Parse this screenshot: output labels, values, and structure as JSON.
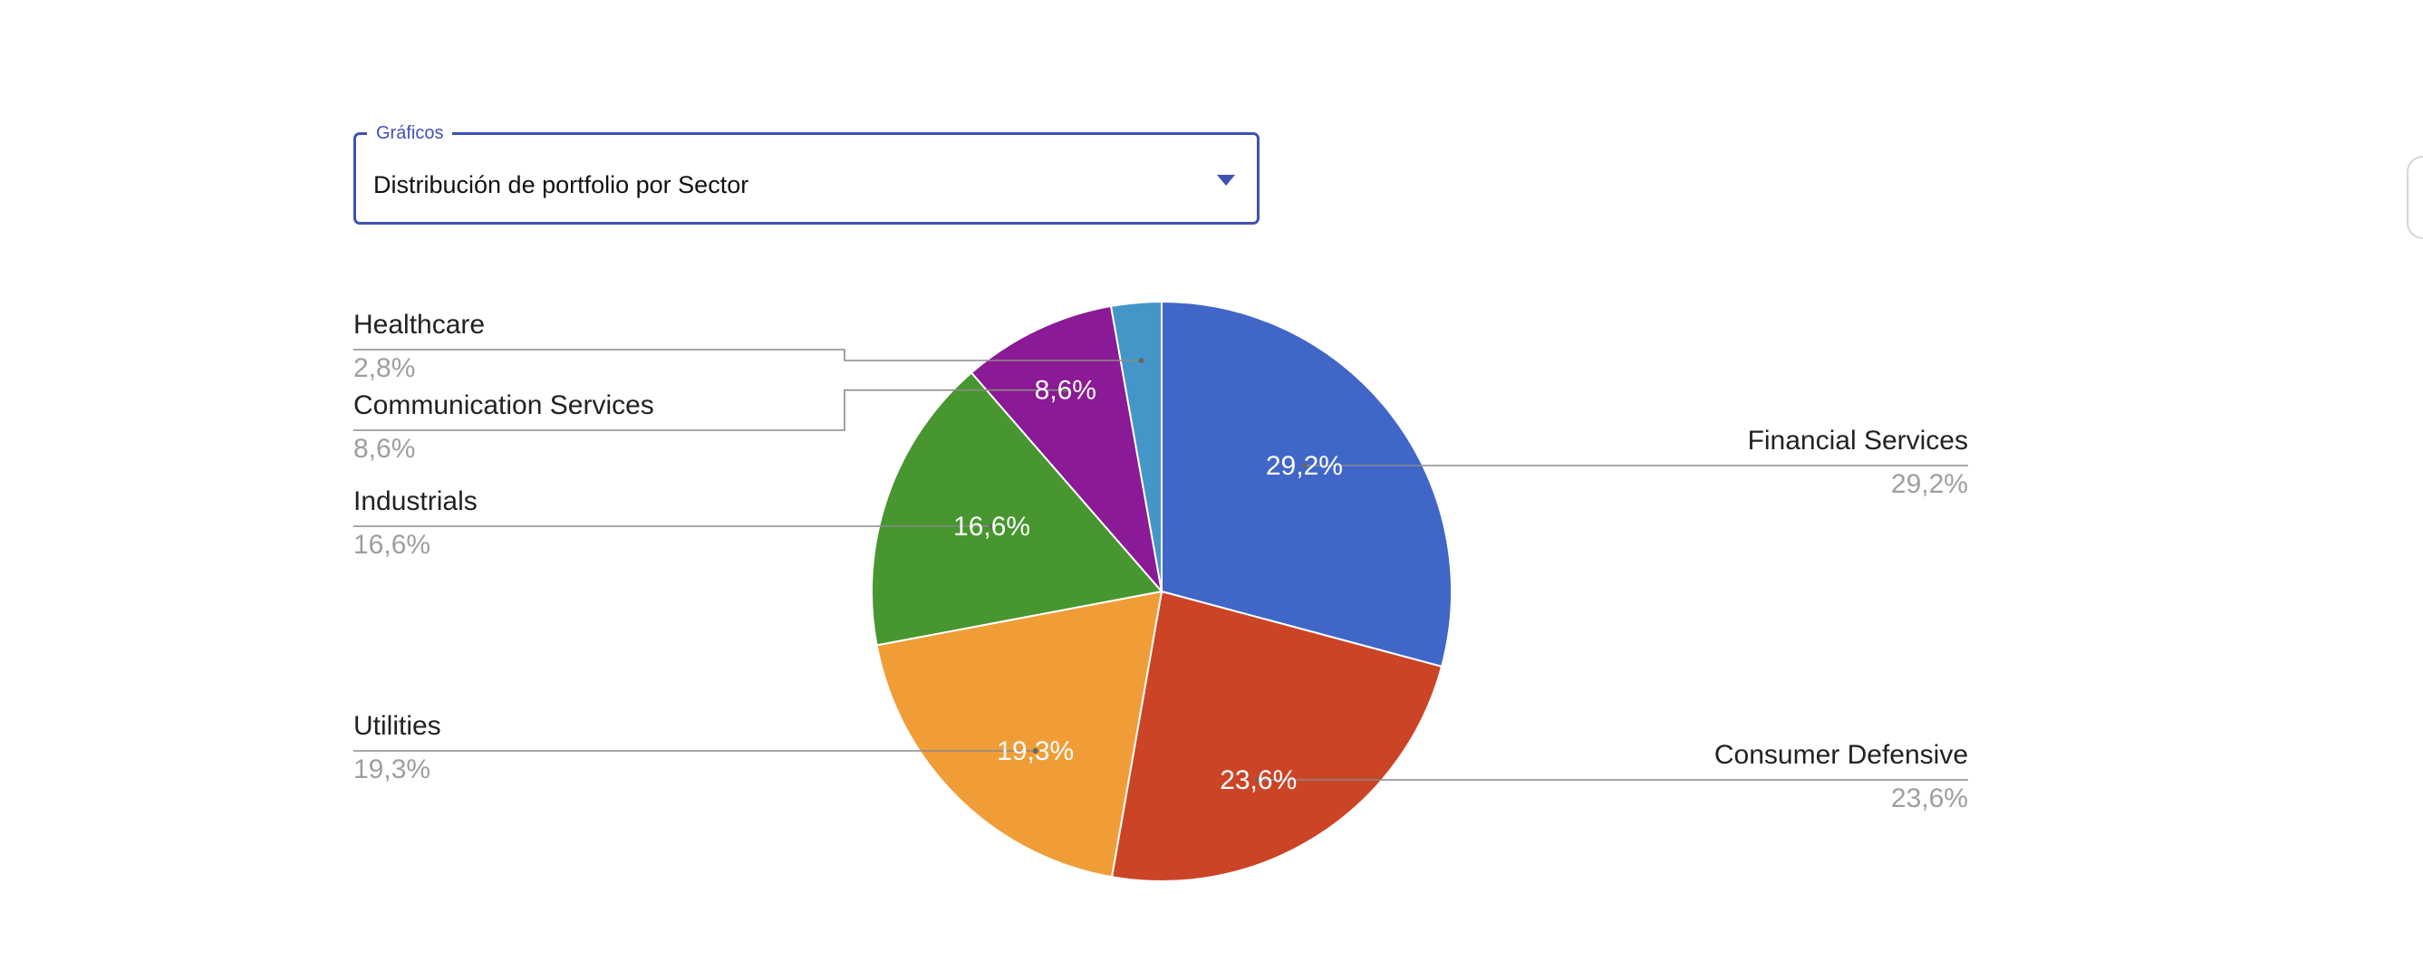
{
  "selector": {
    "legend": "Gráficos",
    "value": "Distribución de portfolio por Sector"
  },
  "chart_data": {
    "type": "pie",
    "start_angle": 0,
    "direction": "clockwise",
    "slices": [
      {
        "name": "Financial Services",
        "value": 29.2,
        "label": "29,2%",
        "color": "#4066c8",
        "slice_label": "29,2%"
      },
      {
        "name": "Consumer Defensive",
        "value": 23.6,
        "label": "23,6%",
        "color": "#cc4426",
        "slice_label": "23,6%"
      },
      {
        "name": "Utilities",
        "value": 19.3,
        "label": "19,3%",
        "color": "#f09d38",
        "slice_label": "19,3%"
      },
      {
        "name": "Industrials",
        "value": 16.6,
        "label": "16,6%",
        "color": "#47962f",
        "slice_label": "16,6%"
      },
      {
        "name": "Communication Services",
        "value": 8.6,
        "label": "8,6%",
        "color": "#8a1a95",
        "slice_label": "8,6%"
      },
      {
        "name": "Healthcare",
        "value": 2.8,
        "label": "2,8%",
        "color": "#4496c9",
        "slice_label": ""
      }
    ]
  }
}
